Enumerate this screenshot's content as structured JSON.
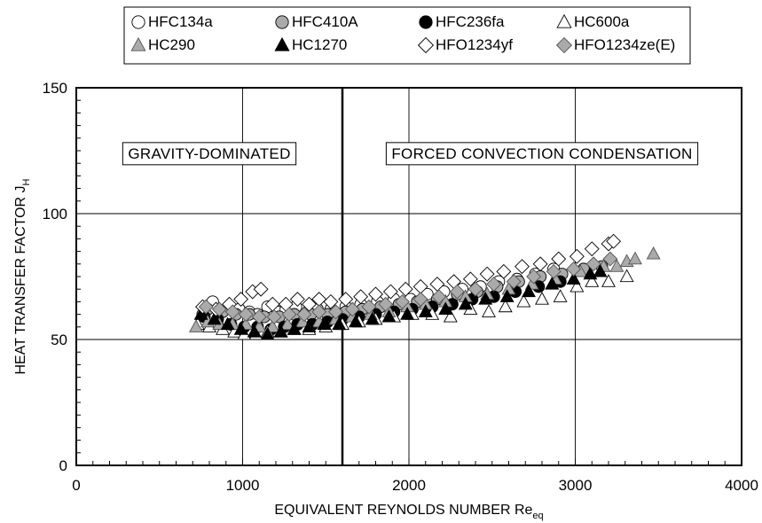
{
  "chart_data": {
    "type": "scatter",
    "xlabel": "EQUIVALENT REYNOLDS NUMBER Re",
    "xlabel_sub": "eq",
    "ylabel": "HEAT TRANSFER FACTOR J",
    "ylabel_sub": "H",
    "xlim": [
      0,
      4000
    ],
    "ylim": [
      0,
      150
    ],
    "xticks": [
      0,
      1000,
      2000,
      3000,
      4000
    ],
    "yticks": [
      0,
      50,
      100,
      150
    ],
    "xtick_labels": [
      "0",
      "1000",
      "2000",
      "3000",
      "4000"
    ],
    "ytick_labels": [
      "0",
      "50",
      "100",
      "150"
    ],
    "grid": true,
    "legend_position": "top",
    "divider_x": 1600,
    "regions": [
      {
        "label": "GRAVITY-DOMINATED",
        "x_center": 800,
        "y": 124
      },
      {
        "label": "FORCED CONVECTION CONDENSATION",
        "x_center": 2800,
        "y": 124
      }
    ],
    "series": [
      {
        "name": "HFC134a",
        "marker": "circle",
        "fill": "#ffffff",
        "points": [
          [
            760,
            60
          ],
          [
            820,
            65
          ],
          [
            870,
            61
          ],
          [
            920,
            63
          ],
          [
            980,
            62
          ],
          [
            1040,
            61
          ],
          [
            1090,
            60
          ],
          [
            1150,
            63
          ],
          [
            1210,
            61
          ],
          [
            1260,
            62
          ],
          [
            1320,
            63
          ],
          [
            1390,
            61
          ],
          [
            1450,
            62
          ],
          [
            1530,
            62
          ],
          [
            1620,
            63
          ],
          [
            1710,
            64
          ],
          [
            1810,
            65
          ],
          [
            1910,
            66
          ],
          [
            2010,
            66
          ],
          [
            2110,
            68
          ],
          [
            2210,
            69
          ],
          [
            2320,
            70
          ],
          [
            2430,
            71
          ],
          [
            2540,
            73
          ],
          [
            2650,
            74
          ],
          [
            2760,
            76
          ],
          [
            2870,
            78
          ]
        ]
      },
      {
        "name": "HFC410A",
        "marker": "circle",
        "fill": "#aaaaaa",
        "points": [
          [
            790,
            62
          ],
          [
            880,
            61
          ],
          [
            960,
            60
          ],
          [
            1040,
            60
          ],
          [
            1130,
            59
          ],
          [
            1220,
            59
          ],
          [
            1310,
            60
          ],
          [
            1410,
            60
          ],
          [
            1510,
            60
          ],
          [
            1620,
            61
          ],
          [
            1720,
            62
          ],
          [
            1830,
            63
          ],
          [
            1940,
            64
          ],
          [
            2050,
            65
          ],
          [
            2170,
            66
          ],
          [
            2290,
            68
          ],
          [
            2410,
            69
          ],
          [
            2530,
            71
          ],
          [
            2660,
            73
          ],
          [
            2790,
            75
          ],
          [
            2920,
            76
          ],
          [
            3050,
            78
          ],
          [
            3160,
            79
          ]
        ]
      },
      {
        "name": "HFC236fa",
        "marker": "circle",
        "fill": "#000000",
        "points": [
          [
            770,
            59
          ],
          [
            850,
            58
          ],
          [
            930,
            56
          ],
          [
            1010,
            55
          ],
          [
            1090,
            55
          ],
          [
            1170,
            54
          ],
          [
            1250,
            55
          ],
          [
            1330,
            56
          ],
          [
            1420,
            56
          ],
          [
            1510,
            57
          ],
          [
            1600,
            58
          ],
          [
            1700,
            59
          ],
          [
            1800,
            60
          ],
          [
            1910,
            61
          ],
          [
            2020,
            62
          ],
          [
            2140,
            63
          ],
          [
            2260,
            64
          ],
          [
            2380,
            66
          ],
          [
            2510,
            67
          ],
          [
            2640,
            69
          ],
          [
            2780,
            71
          ],
          [
            2910,
            73
          ]
        ]
      },
      {
        "name": "HC600a",
        "marker": "triangle",
        "fill": "#ffffff",
        "points": [
          [
            730,
            56
          ],
          [
            800,
            55
          ],
          [
            880,
            54
          ],
          [
            950,
            53
          ],
          [
            1010,
            52
          ],
          [
            1080,
            52
          ],
          [
            1150,
            53
          ],
          [
            1230,
            53
          ],
          [
            1310,
            54
          ],
          [
            1400,
            54
          ],
          [
            1500,
            55
          ],
          [
            1600,
            56
          ],
          [
            1700,
            57
          ],
          [
            1800,
            58
          ],
          [
            1910,
            59
          ],
          [
            2020,
            60
          ],
          [
            2140,
            60
          ],
          [
            2250,
            59
          ],
          [
            2370,
            62
          ],
          [
            2480,
            61
          ],
          [
            2580,
            63
          ],
          [
            2690,
            65
          ],
          [
            2800,
            66
          ],
          [
            2910,
            67
          ],
          [
            3010,
            71
          ],
          [
            3100,
            73
          ],
          [
            3200,
            73
          ],
          [
            3310,
            75
          ]
        ]
      },
      {
        "name": "HC290",
        "marker": "triangle",
        "fill": "#aaaaaa",
        "points": [
          [
            720,
            55
          ],
          [
            790,
            57
          ],
          [
            860,
            56
          ],
          [
            940,
            56
          ],
          [
            1020,
            56
          ],
          [
            1100,
            55
          ],
          [
            1180,
            55
          ],
          [
            1270,
            56
          ],
          [
            1360,
            57
          ],
          [
            1460,
            57
          ],
          [
            1560,
            58
          ],
          [
            1660,
            59
          ],
          [
            1770,
            60
          ],
          [
            1880,
            61
          ],
          [
            1990,
            63
          ],
          [
            2100,
            64
          ],
          [
            2220,
            65
          ],
          [
            2340,
            67
          ],
          [
            2470,
            68
          ],
          [
            2600,
            70
          ],
          [
            2740,
            72
          ],
          [
            2880,
            74
          ],
          [
            3030,
            77
          ],
          [
            3170,
            79
          ],
          [
            3250,
            79
          ],
          [
            3310,
            81
          ],
          [
            3360,
            82
          ],
          [
            3470,
            84
          ]
        ]
      },
      {
        "name": "HC1270",
        "marker": "triangle",
        "fill": "#000000",
        "points": [
          [
            750,
            60
          ],
          [
            830,
            58
          ],
          [
            910,
            56
          ],
          [
            990,
            54
          ],
          [
            1070,
            53
          ],
          [
            1150,
            52
          ],
          [
            1230,
            53
          ],
          [
            1310,
            54
          ],
          [
            1400,
            55
          ],
          [
            1490,
            56
          ],
          [
            1580,
            56
          ],
          [
            1680,
            57
          ],
          [
            1780,
            58
          ],
          [
            1880,
            59
          ],
          [
            1990,
            60
          ],
          [
            2100,
            61
          ],
          [
            2220,
            62
          ],
          [
            2340,
            64
          ],
          [
            2460,
            66
          ],
          [
            2590,
            67
          ],
          [
            2720,
            69
          ],
          [
            2860,
            72
          ],
          [
            2990,
            74
          ],
          [
            3090,
            76
          ],
          [
            3150,
            77
          ]
        ]
      },
      {
        "name": "HFO1234yf",
        "marker": "diamond",
        "fill": "#ffffff",
        "points": [
          [
            760,
            63
          ],
          [
            840,
            62
          ],
          [
            920,
            64
          ],
          [
            990,
            66
          ],
          [
            1060,
            69
          ],
          [
            1110,
            70
          ],
          [
            1180,
            64
          ],
          [
            1260,
            64
          ],
          [
            1330,
            66
          ],
          [
            1400,
            64
          ],
          [
            1460,
            66
          ],
          [
            1530,
            65
          ],
          [
            1620,
            66
          ],
          [
            1710,
            67
          ],
          [
            1800,
            68
          ],
          [
            1890,
            69
          ],
          [
            1980,
            70
          ],
          [
            2070,
            71
          ],
          [
            2170,
            72
          ],
          [
            2270,
            73
          ],
          [
            2370,
            74
          ],
          [
            2470,
            76
          ],
          [
            2570,
            77
          ],
          [
            2680,
            79
          ],
          [
            2790,
            80
          ],
          [
            2900,
            82
          ],
          [
            3010,
            83
          ],
          [
            3100,
            86
          ],
          [
            3200,
            88
          ],
          [
            3230,
            89
          ]
        ]
      },
      {
        "name": "HFO1234ze(E)",
        "marker": "diamond",
        "fill": "#aaaaaa",
        "points": [
          [
            780,
            63
          ],
          [
            860,
            62
          ],
          [
            940,
            61
          ],
          [
            1020,
            60
          ],
          [
            1100,
            59
          ],
          [
            1190,
            59
          ],
          [
            1280,
            60
          ],
          [
            1370,
            60
          ],
          [
            1460,
            61
          ],
          [
            1560,
            61
          ],
          [
            1660,
            62
          ],
          [
            1760,
            63
          ],
          [
            1860,
            64
          ],
          [
            1960,
            65
          ],
          [
            2070,
            66
          ],
          [
            2180,
            67
          ],
          [
            2290,
            69
          ],
          [
            2400,
            70
          ],
          [
            2510,
            72
          ],
          [
            2630,
            73
          ],
          [
            2750,
            75
          ],
          [
            2870,
            77
          ],
          [
            2990,
            78
          ],
          [
            3110,
            80
          ],
          [
            3210,
            82
          ]
        ]
      }
    ]
  }
}
